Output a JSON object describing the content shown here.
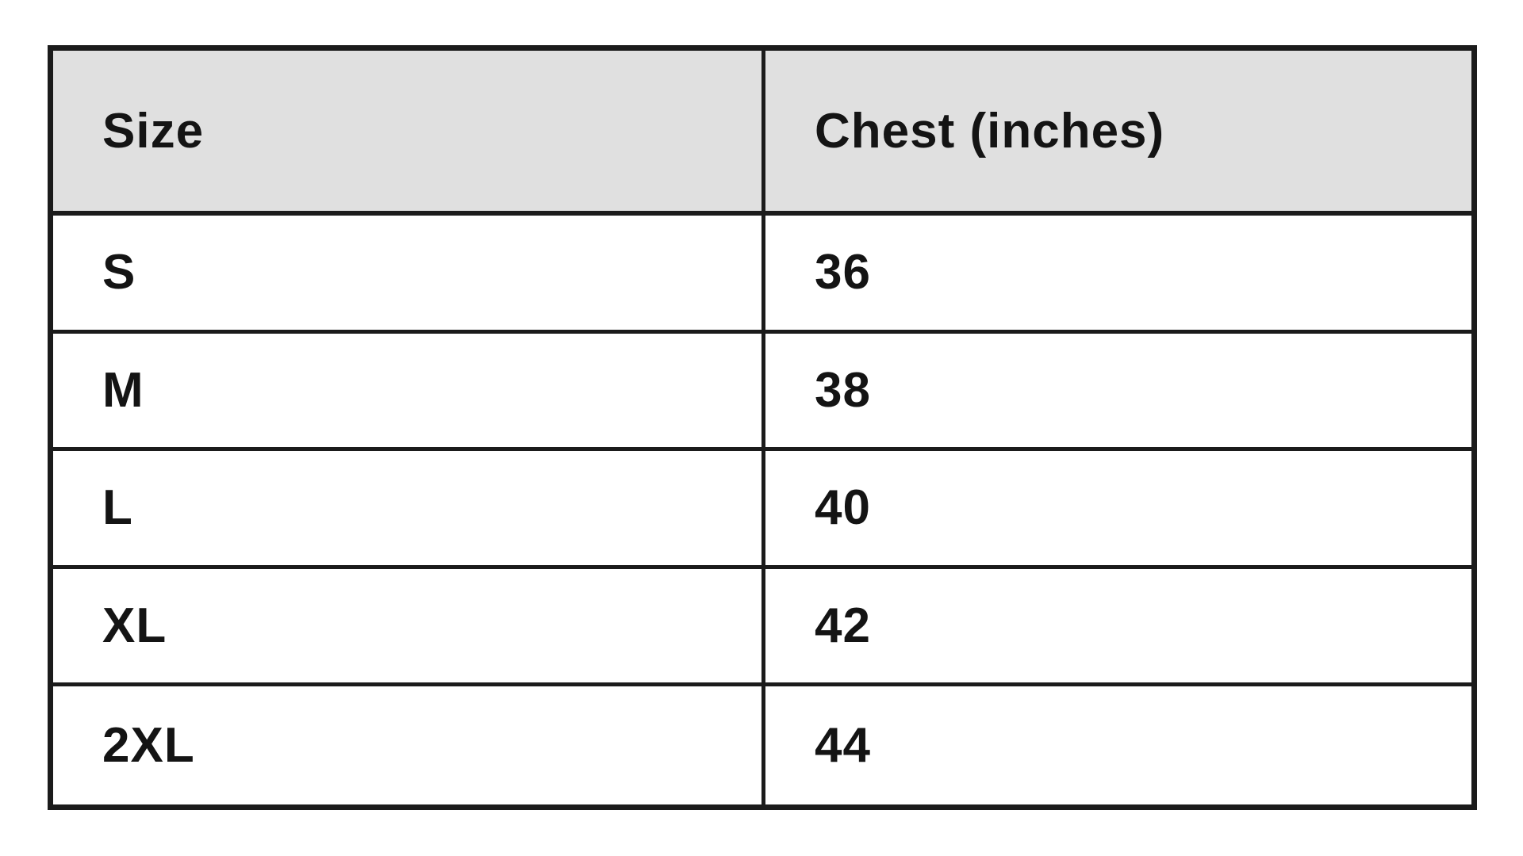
{
  "table": {
    "columns": [
      {
        "label": "Size"
      },
      {
        "label": "Chest (inches)"
      }
    ],
    "rows": [
      {
        "size": "S",
        "chest": "36"
      },
      {
        "size": "M",
        "chest": "38"
      },
      {
        "size": "L",
        "chest": "40"
      },
      {
        "size": "XL",
        "chest": "42"
      },
      {
        "size": "2XL",
        "chest": "44"
      }
    ],
    "colors": {
      "header_bg": "#e0e0e0",
      "border": "#1b1b1b",
      "text": "#141414",
      "page_bg": "#ffffff"
    }
  },
  "chart_data": {
    "type": "table",
    "title": "",
    "columns": [
      "Size",
      "Chest (inches)"
    ],
    "categories": [
      "S",
      "M",
      "L",
      "XL",
      "2XL"
    ],
    "values": [
      36,
      38,
      40,
      42,
      44
    ],
    "xlabel": "Size",
    "ylabel": "Chest (inches)",
    "layout_hints": {
      "header_background": "#e0e0e0",
      "grid": "on",
      "border_style": "thick-black"
    }
  }
}
